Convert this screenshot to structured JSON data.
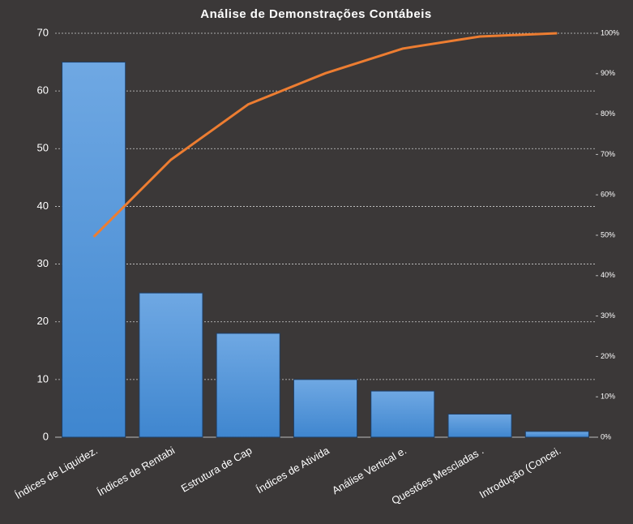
{
  "chart_data": {
    "type": "pareto",
    "title": "Análise de Demonstrações Contábeis",
    "categories": [
      "Índices de Liquidez.",
      "Índices de Rentabi",
      "Estrutura de Cap",
      "Índices de Ativida",
      "Análise Vertical e.",
      "Questões Mescladas .",
      "Introdução  (Concei."
    ],
    "series": [
      {
        "color": "#4a8fd6",
        "values": [
          65,
          25,
          18,
          10,
          8,
          4,
          1
        ]
      },
      {
        "color": "#ed7d31",
        "axis": "y2",
        "values": [
          49.6,
          68.7,
          82.4,
          90.1,
          96.2,
          99.2,
          100
        ]
      }
    ],
    "ylim": [
      0,
      70
    ],
    "yticks": [
      0,
      10,
      20,
      30,
      40,
      50,
      60,
      70
    ],
    "y2lim": [
      0,
      100
    ],
    "y2ticks": [
      {
        "value": 0,
        "label": "0%"
      },
      {
        "value": 10,
        "label": "10%"
      },
      {
        "value": 20,
        "label": "20%"
      },
      {
        "value": 30,
        "label": "30%"
      },
      {
        "value": 40,
        "label": "40%"
      },
      {
        "value": 50,
        "label": "50%"
      },
      {
        "value": 60,
        "label": "60%"
      },
      {
        "value": 70,
        "label": "70%"
      },
      {
        "value": 80,
        "label": "80%"
      },
      {
        "value": 90,
        "label": "90%"
      },
      {
        "value": 100,
        "label": "100%"
      }
    ],
    "grid": true
  }
}
